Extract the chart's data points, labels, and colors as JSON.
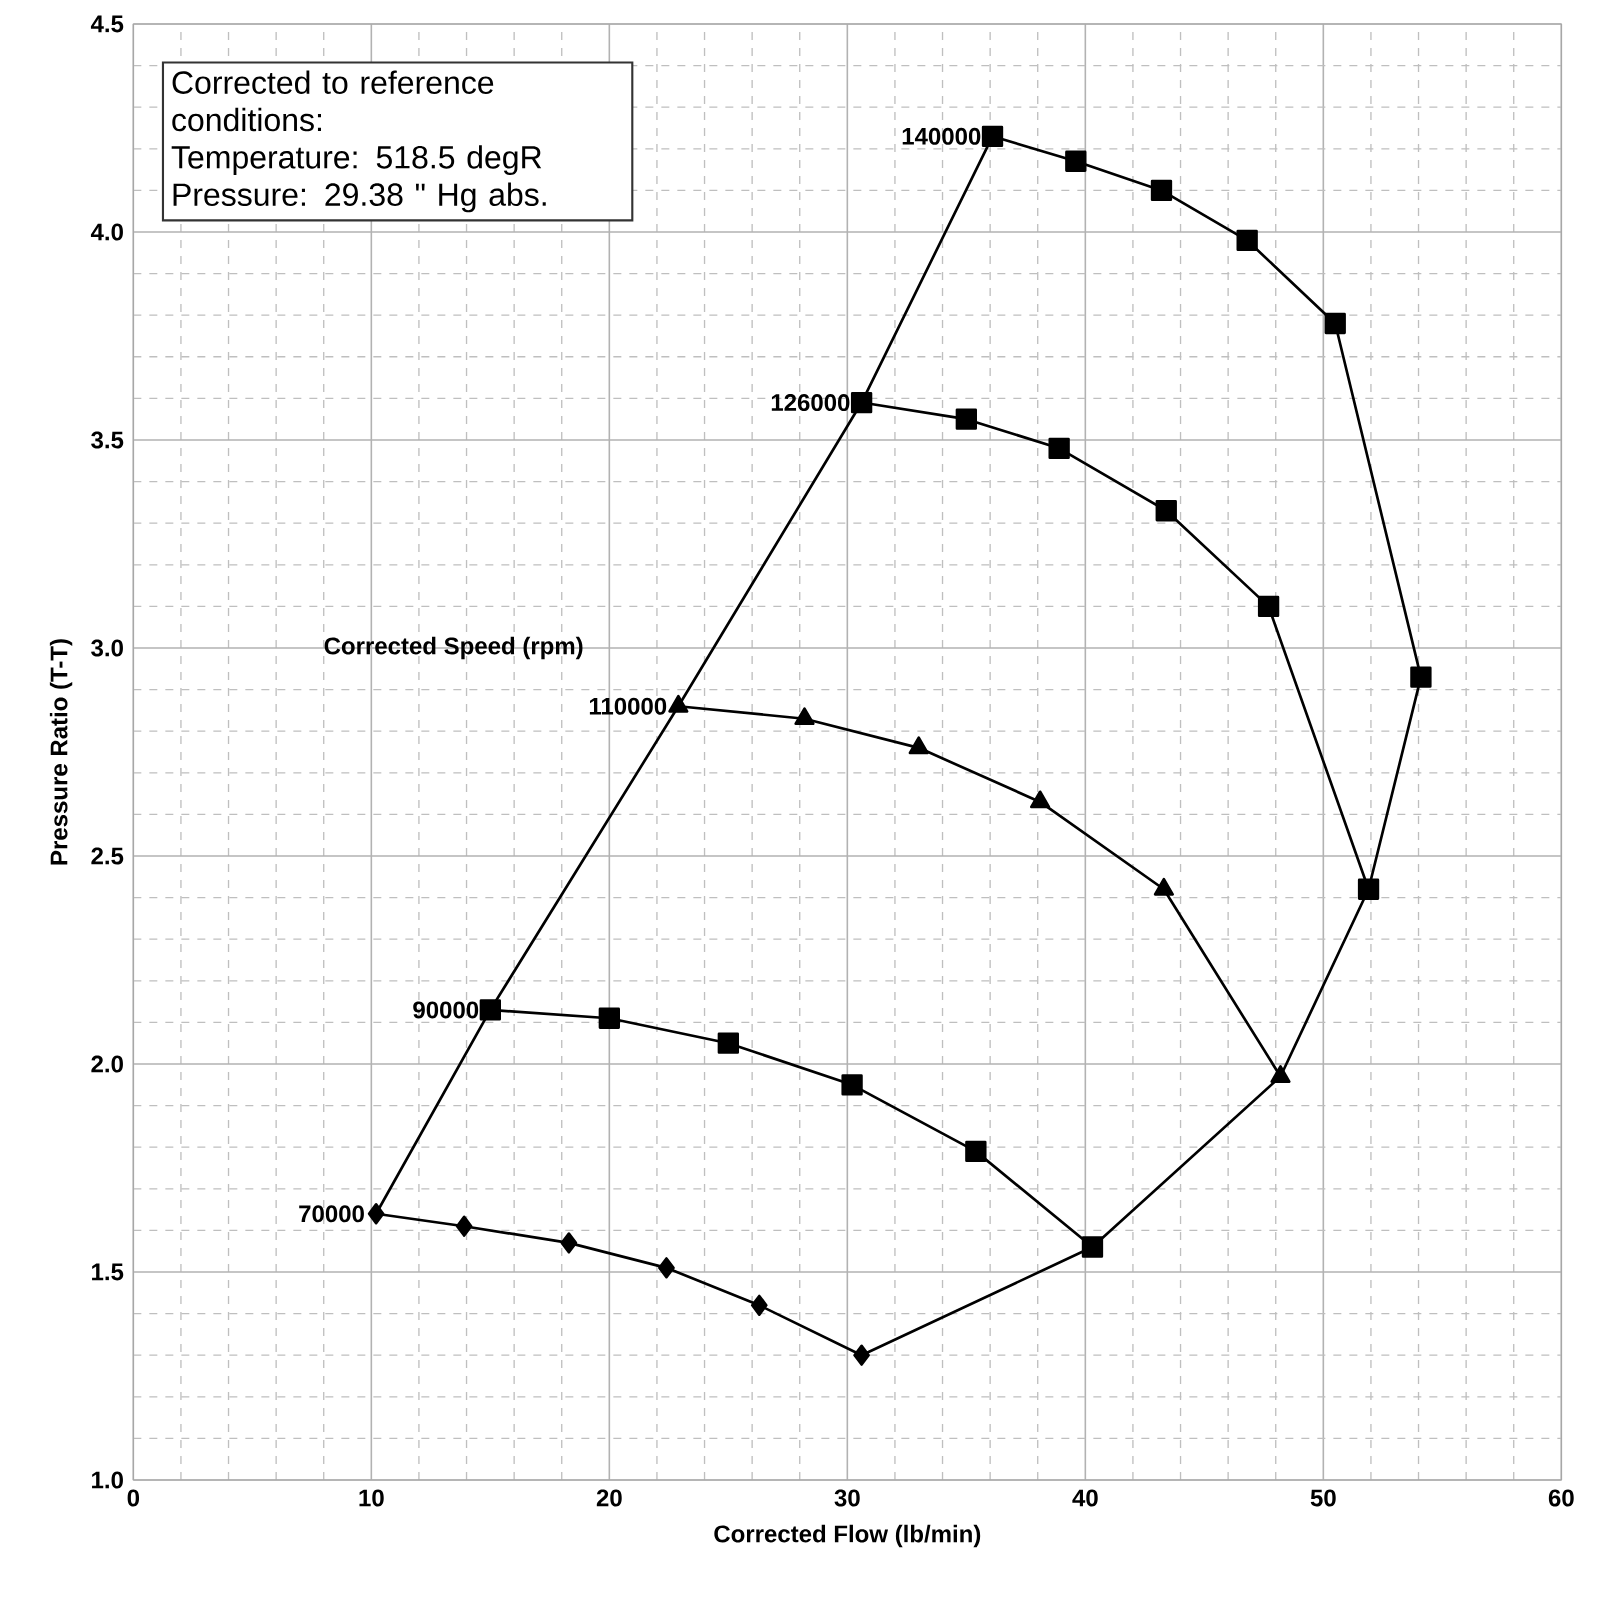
{
  "chart_data": {
    "type": "line",
    "xlabel": "Corrected Flow (lb/min)",
    "ylabel": "Pressure Ratio (T-T)",
    "xlim": [
      0,
      60
    ],
    "xticks": [
      0,
      10,
      20,
      30,
      40,
      50,
      60
    ],
    "ylim": [
      1.0,
      4.5
    ],
    "yticks": [
      {
        "value": 1.0,
        "label": "1.0"
      },
      {
        "value": 1.5,
        "label": "1.5"
      },
      {
        "value": 2.0,
        "label": "2.0"
      },
      {
        "value": 2.5,
        "label": "2.5"
      },
      {
        "value": 3.0,
        "label": "3.0"
      },
      {
        "value": 3.5,
        "label": "3.5"
      },
      {
        "value": 4.0,
        "label": "4.0"
      },
      {
        "value": 4.5,
        "label": "4.5"
      }
    ],
    "grid": true,
    "legend": false,
    "annotations": [
      "Corrected to reference conditions:",
      "Temperature:  518.5 degR",
      "Pressure:  29.38 \" Hg abs.",
      "Corrected Speed (rpm)"
    ],
    "series": [
      {
        "name": "70000",
        "color": "#000000",
        "marker": "diamond",
        "x": [
          10.2,
          13.9,
          18.3,
          22.4,
          26.3,
          30.6
        ],
        "values": [
          1.64,
          1.61,
          1.57,
          1.51,
          1.42,
          1.3
        ]
      },
      {
        "name": "90000",
        "color": "#000000",
        "marker": "square",
        "x": [
          15.0,
          20.0,
          25.0,
          30.2,
          35.4,
          40.3
        ],
        "values": [
          2.13,
          2.11,
          2.05,
          1.95,
          1.79,
          1.56
        ]
      },
      {
        "name": "110000",
        "color": "#000000",
        "marker": "triangle",
        "x": [
          22.9,
          28.2,
          33.0,
          38.1,
          43.3,
          48.2
        ],
        "values": [
          2.86,
          2.83,
          2.76,
          2.63,
          2.42,
          1.97
        ]
      },
      {
        "name": "126000",
        "color": "#000000",
        "marker": "square",
        "x": [
          30.6,
          35.0,
          38.9,
          43.4,
          47.7,
          51.9
        ],
        "values": [
          3.59,
          3.55,
          3.48,
          3.33,
          3.1,
          2.42
        ]
      },
      {
        "name": "140000",
        "color": "#000000",
        "marker": "square",
        "x": [
          36.1,
          39.6,
          43.2,
          46.8,
          50.5,
          54.1
        ],
        "values": [
          4.23,
          4.17,
          4.1,
          3.98,
          3.78,
          2.93
        ]
      },
      {
        "color": "#000000",
        "marker": "none",
        "x": [
          10.2,
          15.0,
          22.9,
          30.6,
          36.1
        ],
        "values": [
          1.64,
          2.13,
          2.86,
          3.59,
          4.23
        ]
      },
      {
        "color": "#000000",
        "marker": "none",
        "x": [
          30.6,
          40.3,
          48.2,
          51.9,
          54.1
        ],
        "values": [
          1.3,
          1.56,
          1.97,
          2.42,
          2.93
        ]
      }
    ]
  }
}
